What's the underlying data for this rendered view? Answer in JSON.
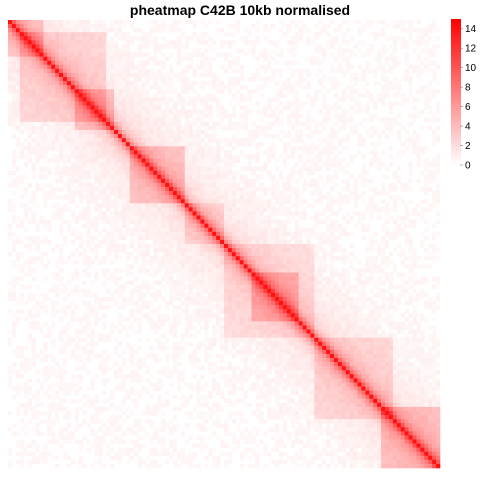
{
  "chart_data": {
    "type": "heatmap",
    "title": "pheatmap C42B 10kb normalised",
    "matrix_size": 110,
    "diagonal_value": 14,
    "background_level": 0.3,
    "color_scale": {
      "low": "#ffffff",
      "high": "#ff0000",
      "min": 0,
      "max": 15,
      "ticks": [
        "0",
        "2",
        "4",
        "6",
        "8",
        "10",
        "12",
        "14"
      ]
    },
    "domains": [
      {
        "start": 0,
        "end": 9,
        "intensity": 2.2
      },
      {
        "start": 3,
        "end": 25,
        "intensity": 1.8
      },
      {
        "start": 17,
        "end": 27,
        "intensity": 2.4
      },
      {
        "start": 31,
        "end": 45,
        "intensity": 2.6
      },
      {
        "start": 45,
        "end": 55,
        "intensity": 1.5
      },
      {
        "start": 55,
        "end": 78,
        "intensity": 1.4
      },
      {
        "start": 62,
        "end": 74,
        "intensity": 2.7
      },
      {
        "start": 78,
        "end": 98,
        "intensity": 1.7
      },
      {
        "start": 95,
        "end": 110,
        "intensity": 2.9
      }
    ]
  }
}
